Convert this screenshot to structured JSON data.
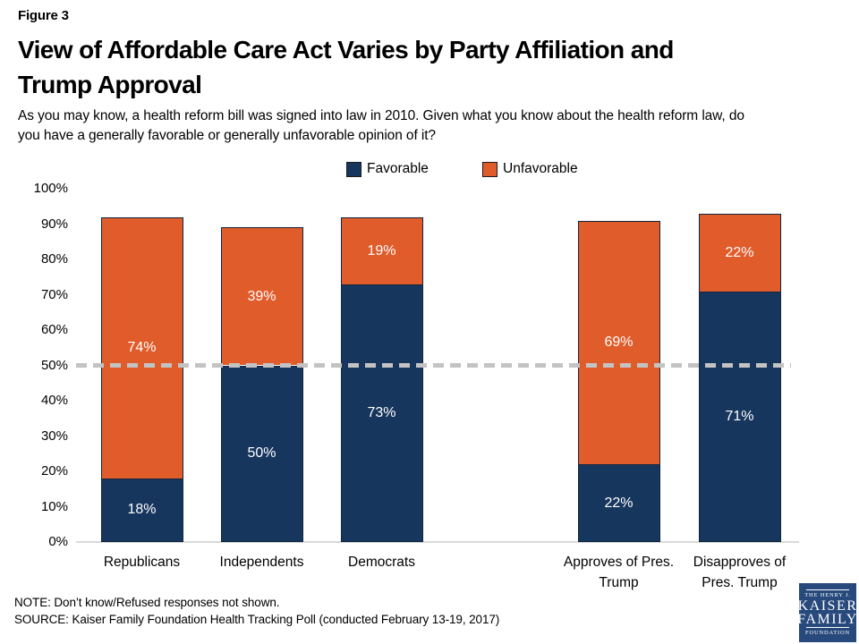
{
  "header": {
    "figure_label": "Figure 3",
    "title_lines": [
      "View of Affordable Care Act Varies by Party Affiliation and",
      "Trump Approval"
    ],
    "subtitle_lines": [
      "As you may know, a health reform bill was signed into law in 2010. Given what you know about the health reform law, do",
      "you have a generally favorable or generally unfavorable opinion of it?"
    ]
  },
  "chart_data": {
    "type": "bar",
    "stacked": true,
    "title": "View of Affordable Care Act Varies by Party Affiliation and Trump Approval",
    "categories": [
      "Republicans",
      "Independents",
      "Democrats",
      "Approves of Pres.\nTrump",
      "Disapproves of\nPres. Trump"
    ],
    "series": [
      {
        "name": "Favorable",
        "color": "#17365d",
        "values": [
          18,
          50,
          73,
          22,
          71
        ]
      },
      {
        "name": "Unfavorable",
        "color": "#e05c2b",
        "values": [
          74,
          39,
          19,
          69,
          22
        ]
      }
    ],
    "value_label_suffix": "%",
    "ylim": [
      0,
      100
    ],
    "y_tick_labels": [
      "0%",
      "10%",
      "20%",
      "30%",
      "40%",
      "50%",
      "60%",
      "70%",
      "80%",
      "90%",
      "100%"
    ],
    "reference_line_value": 50,
    "grid": false,
    "legend_position": "top-center"
  },
  "footer": {
    "note": "NOTE: Don’t know/Refused responses not shown.",
    "source": "SOURCE: Kaiser Family Foundation Health Tracking Poll (conducted February 13-19, 2017)"
  },
  "logo": {
    "lines": [
      "THE HENRY J.",
      "KAISER",
      "FAMILY",
      "FOUNDATION"
    ]
  },
  "colors": {
    "favorable": "#17365d",
    "unfavorable": "#e05c2b",
    "reference_line": "#c3c3c3",
    "axis_line": "#d9d9d9",
    "bar_border": "#10263f",
    "logo_background": "#27497b"
  }
}
